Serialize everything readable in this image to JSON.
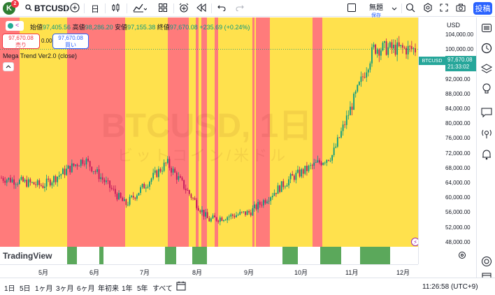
{
  "toolbar": {
    "avatar_letter": "K",
    "notification_count": "2",
    "symbol": "BTCUSD",
    "interval": "日",
    "layout_name": "無題",
    "layout_sub": "保存",
    "publish_label": "投稿"
  },
  "legend": {
    "open_label": "始値",
    "open": "97,405.56",
    "high_label": "高値",
    "high": "98,286.20",
    "low_label": "安値",
    "low": "97,155.38",
    "close_label": "終値",
    "close": "97,670.08",
    "change": "+235.69 (+0.24%)",
    "sell_price": "97,670.08",
    "sell_label": "売り",
    "spread": "0.00",
    "buy_price": "97,670.08",
    "buy_label": "買い",
    "indicator_name": "Mega Trend Ver2.0 (close)"
  },
  "watermark": {
    "line1": "BTCUSD, 1日",
    "line2": "ビットコイン/米ドル"
  },
  "price_axis": {
    "currency": "USD",
    "ticks": [
      "104,000.00",
      "100,000.00",
      "96,000.00",
      "92,000.00",
      "88,000.00",
      "84,000.00",
      "80,000.00",
      "76,000.00",
      "72,000.00",
      "68,000.00",
      "64,000.00",
      "60,000.00",
      "56,000.00",
      "52,000.00",
      "48,000.00"
    ],
    "last_symbol": "BTCUSD",
    "last_price": "97,670.08",
    "countdown": "21:33:02"
  },
  "time_axis": {
    "ticks": [
      "5月",
      "6月",
      "7月",
      "8月",
      "9月",
      "10月",
      "11月",
      "12月"
    ]
  },
  "bottom": {
    "ranges": [
      "1日",
      "5日",
      "1ヶ月",
      "3ヶ月",
      "6ヶ月",
      "年初来",
      "1年",
      "5年",
      "すべて"
    ],
    "time": "11:26:58 (UTC+9)"
  },
  "branding": "TradingView",
  "colors": {
    "bull_zone": "#ffe14d",
    "bear_zone": "#ff7b7b",
    "candle_up": "#089981",
    "candle_down": "#c2185b",
    "subpane_green": "#5ba85b",
    "accent": "#2962ff"
  },
  "chart_data": {
    "type": "candlestick",
    "x_axis_labels": [
      "5月",
      "6月",
      "7月",
      "8月",
      "9月",
      "10月",
      "11月",
      "12月"
    ],
    "ylim": [
      46000,
      106000
    ],
    "price_path_approx": [
      {
        "month": "4月",
        "price": 64000
      },
      {
        "month": "5月",
        "price": 62000
      },
      {
        "month": "6月",
        "price": 69000
      },
      {
        "month": "7月",
        "price": 57000
      },
      {
        "month": "7月下旬",
        "price": 68000
      },
      {
        "month": "8月",
        "price": 53000
      },
      {
        "month": "9月",
        "price": 55000
      },
      {
        "month": "10月",
        "price": 64000
      },
      {
        "month": "11月",
        "price": 70000
      },
      {
        "month": "11月下旬",
        "price": 98000
      },
      {
        "month": "12月",
        "price": 97670
      }
    ],
    "zones": [
      {
        "state": "bear"
      },
      {
        "state": "bull"
      },
      {
        "state": "bear"
      },
      {
        "state": "bull"
      },
      {
        "state": "bear"
      },
      {
        "state": "bull"
      },
      {
        "state": "bear"
      },
      {
        "state": "bull"
      },
      {
        "state": "bear"
      },
      {
        "state": "bull"
      },
      {
        "state": "bear"
      },
      {
        "state": "bull"
      },
      {
        "state": "bear"
      },
      {
        "state": "bull"
      },
      {
        "state": "bear"
      }
    ]
  }
}
